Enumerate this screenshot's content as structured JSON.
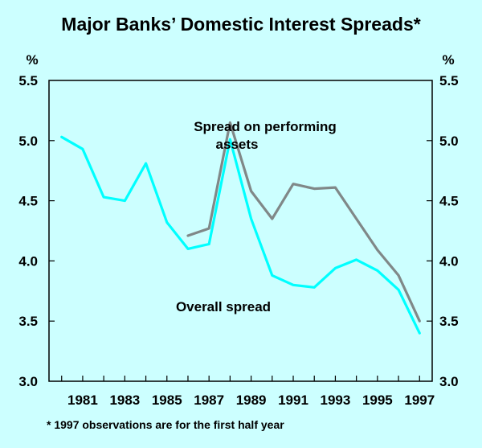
{
  "colors": {
    "background": "#ccffff",
    "overall": "#00ffff",
    "performing": "#808888",
    "axis": "#000000"
  },
  "chart_data": {
    "type": "line",
    "title": "Major Banks’ Domestic Interest Spreads*",
    "xlabel": "",
    "ylabel_left": "%",
    "ylabel_right": "%",
    "ylim": [
      3.0,
      5.5
    ],
    "yticks": [
      "3.0",
      "3.5",
      "4.0",
      "4.5",
      "5.0",
      "5.5"
    ],
    "xlim": [
      1979.4,
      1997.6
    ],
    "xtick_labels": [
      "1981",
      "1983",
      "1985",
      "1987",
      "1989",
      "1991",
      "1993",
      "1995",
      "1997"
    ],
    "grid": false,
    "legend": "none",
    "series": [
      {
        "name": "Overall spread",
        "x": [
          1980,
          1981,
          1982,
          1983,
          1984,
          1985,
          1986,
          1987,
          1988,
          1989,
          1990,
          1991,
          1992,
          1993,
          1994,
          1995,
          1996,
          1997
        ],
        "values": [
          5.03,
          4.93,
          4.53,
          4.5,
          4.81,
          4.32,
          4.1,
          4.14,
          5.01,
          4.35,
          3.88,
          3.8,
          3.78,
          3.94,
          4.01,
          3.92,
          3.76,
          3.4
        ]
      },
      {
        "name": "Spread on performing assets",
        "x": [
          1986,
          1987,
          1988,
          1989,
          1990,
          1991,
          1992,
          1993,
          1994,
          1995,
          1996,
          1997
        ],
        "values": [
          4.21,
          4.27,
          5.15,
          4.58,
          4.35,
          4.64,
          4.6,
          4.61,
          4.35,
          4.09,
          3.88,
          3.5
        ]
      }
    ],
    "annotations": {
      "performing_line1": "Spread on performing",
      "performing_line2": "assets",
      "overall": "Overall spread"
    },
    "footnote": "*   1997 observations are for the first half year"
  }
}
